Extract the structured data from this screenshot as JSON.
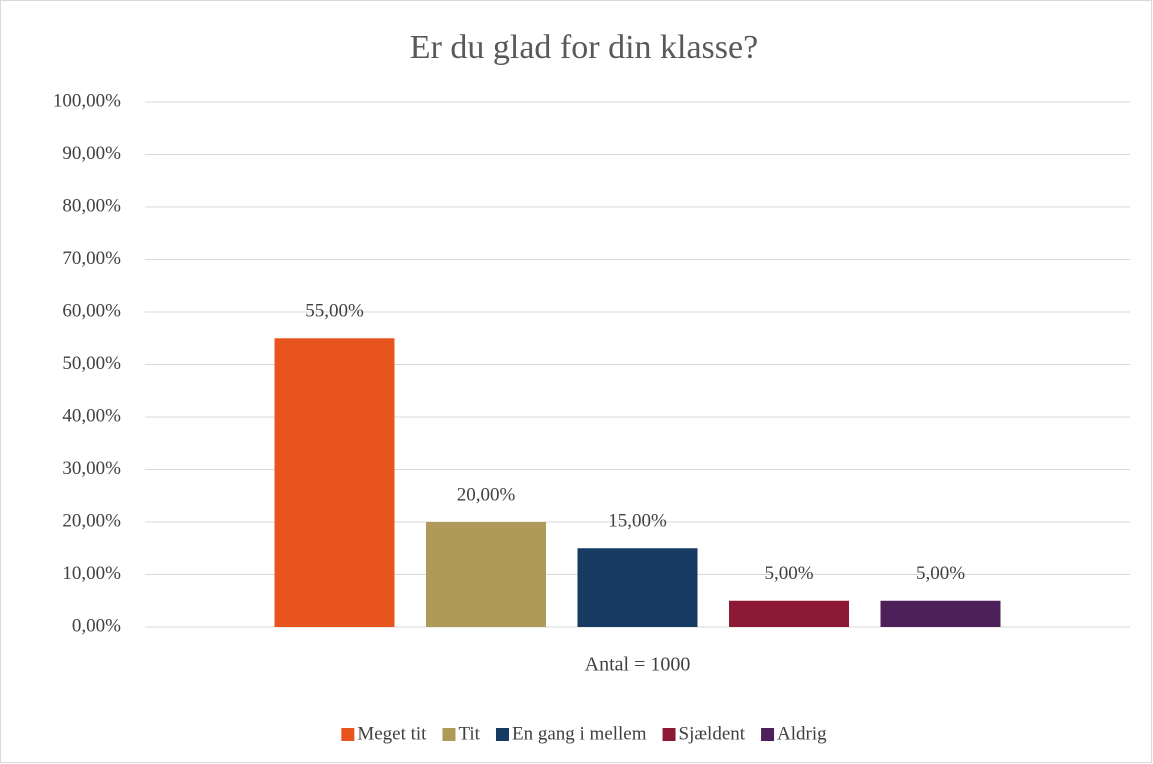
{
  "chart_data": {
    "type": "bar",
    "title": "Er du glad for din klasse?",
    "categories": [
      "Antal = 1000"
    ],
    "series": [
      {
        "name": "Meget tit",
        "color": "#e8541e",
        "values": [
          55
        ],
        "value_labels": [
          "55,00%"
        ]
      },
      {
        "name": "Tit",
        "color": "#b09a5a",
        "values": [
          20
        ],
        "value_labels": [
          "20,00%"
        ]
      },
      {
        "name": "En gang i mellem",
        "color": "#173a63",
        "values": [
          15
        ],
        "value_labels": [
          "15,00%"
        ]
      },
      {
        "name": "Sjældent",
        "color": "#8c1a35",
        "values": [
          5
        ],
        "value_labels": [
          "5,00%"
        ]
      },
      {
        "name": "Aldrig",
        "color": "#4e2059",
        "values": [
          5
        ],
        "value_labels": [
          "5,00%"
        ]
      }
    ],
    "ylim": [
      0,
      100
    ],
    "yticks": [
      {
        "value": 0,
        "label": "0,00%"
      },
      {
        "value": 10,
        "label": "10,00%"
      },
      {
        "value": 20,
        "label": "20,00%"
      },
      {
        "value": 30,
        "label": "30,00%"
      },
      {
        "value": 40,
        "label": "40,00%"
      },
      {
        "value": 50,
        "label": "50,00%"
      },
      {
        "value": 60,
        "label": "60,00%"
      },
      {
        "value": 70,
        "label": "70,00%"
      },
      {
        "value": 80,
        "label": "80,00%"
      },
      {
        "value": 90,
        "label": "90,00%"
      },
      {
        "value": 100,
        "label": "100,00%"
      }
    ],
    "grid": true,
    "legend": "bottom"
  }
}
